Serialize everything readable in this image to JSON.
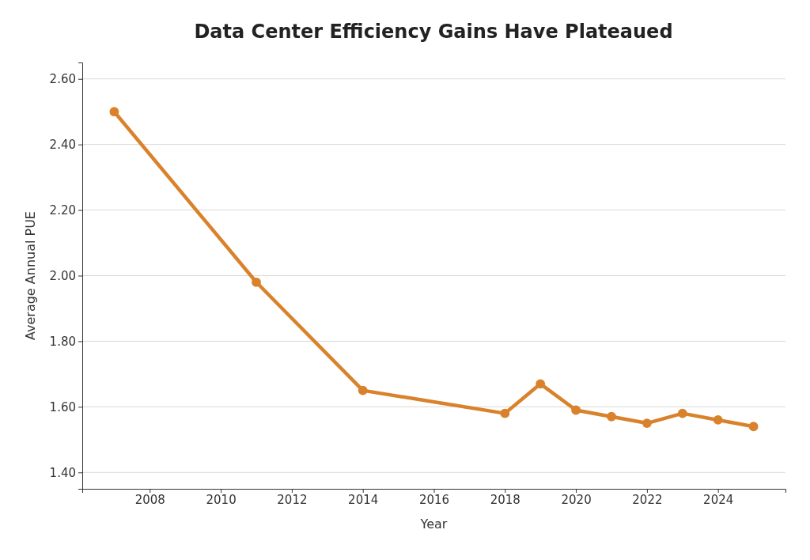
{
  "chart_data": {
    "type": "line",
    "title": "Data Center Efficiency Gains Have Plateaued",
    "xlabel": "Year",
    "ylabel": "Average Annual PUE",
    "x": [
      2007,
      2011,
      2014,
      2018,
      2019,
      2020,
      2021,
      2022,
      2023,
      2024,
      2025
    ],
    "series": [
      {
        "color": "#d9822b",
        "values": [
          2.5,
          1.98,
          1.65,
          1.58,
          1.67,
          1.59,
          1.57,
          1.55,
          1.58,
          1.56,
          1.54
        ]
      }
    ],
    "xlim": [
      2006.1,
      2025.9
    ],
    "xticks": [
      2008,
      2010,
      2012,
      2014,
      2016,
      2018,
      2020,
      2022,
      2024
    ],
    "ylim": [
      1.35,
      2.65
    ],
    "yticks": [
      {
        "value": 1.4,
        "label": "1.40"
      },
      {
        "value": 1.6,
        "label": "1.60"
      },
      {
        "value": 1.8,
        "label": "1.80"
      },
      {
        "value": 2.0,
        "label": "2.00"
      },
      {
        "value": 2.2,
        "label": "2.20"
      },
      {
        "value": 2.4,
        "label": "2.40"
      },
      {
        "value": 2.6,
        "label": "2.60"
      }
    ],
    "grid": "y",
    "marker": "circle",
    "line_style": "solid"
  }
}
